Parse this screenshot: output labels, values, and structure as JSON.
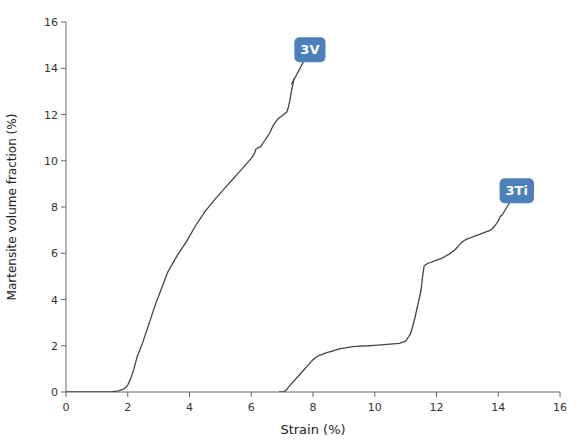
{
  "chart_data": {
    "type": "line",
    "xlabel": "Strain (%)",
    "ylabel": "Martensite volume fraction (%)",
    "xlim": [
      0,
      16
    ],
    "ylim": [
      0,
      16
    ],
    "xticks": [
      0,
      2,
      4,
      6,
      8,
      10,
      12,
      14,
      16
    ],
    "yticks": [
      0,
      2,
      4,
      6,
      8,
      10,
      12,
      14,
      16
    ],
    "grid": false,
    "series": [
      {
        "color": "#444444",
        "x": [
          0.0,
          0.5,
          1.0,
          1.3,
          1.5,
          1.7,
          1.9,
          2.0,
          2.1,
          2.2,
          2.3,
          2.5,
          2.7,
          2.9,
          3.1,
          3.3,
          3.6,
          3.9,
          4.2,
          4.5,
          4.8,
          5.0,
          5.2,
          5.4,
          5.6,
          5.8,
          6.0,
          6.1,
          6.15,
          6.2,
          6.3,
          6.4,
          6.5,
          6.6,
          6.7,
          6.8,
          6.9,
          7.0,
          7.05,
          7.1,
          7.15,
          7.2,
          7.25,
          7.3,
          7.35,
          7.38
        ],
        "values": [
          0.0,
          0.0,
          0.0,
          0.0,
          0.02,
          0.05,
          0.15,
          0.3,
          0.6,
          1.0,
          1.5,
          2.2,
          3.0,
          3.8,
          4.5,
          5.2,
          5.9,
          6.5,
          7.2,
          7.8,
          8.3,
          8.6,
          8.9,
          9.2,
          9.5,
          9.8,
          10.1,
          10.3,
          10.5,
          10.55,
          10.6,
          10.8,
          11.0,
          11.2,
          11.5,
          11.7,
          11.85,
          11.95,
          12.0,
          12.05,
          12.1,
          12.3,
          12.6,
          13.0,
          13.3,
          13.55
        ]
      },
      {
        "color": "#444444",
        "x": [
          6.9,
          7.0,
          7.05,
          7.1,
          7.15,
          7.2,
          7.3,
          7.4,
          7.5,
          7.6,
          7.7,
          7.8,
          7.9,
          8.0,
          8.1,
          8.2,
          8.3,
          8.4,
          8.5,
          8.6,
          8.65,
          8.7,
          8.75,
          8.8,
          8.85,
          8.9,
          9.0,
          9.1,
          9.2,
          9.3,
          9.5,
          9.8,
          10.0,
          10.3,
          10.8,
          11.0,
          11.1,
          11.15,
          11.2,
          11.3,
          11.4,
          11.5,
          11.55,
          11.6,
          11.65,
          11.7,
          11.8,
          11.9,
          12.0,
          12.1,
          12.2,
          12.3,
          12.4,
          12.5,
          12.6,
          12.7,
          12.8,
          12.9,
          13.0,
          13.1,
          13.2,
          13.3,
          13.4,
          13.5,
          13.6,
          13.7,
          13.8,
          13.9,
          14.0,
          14.05,
          14.1
        ],
        "values": [
          0.0,
          0.0,
          0.02,
          0.05,
          0.1,
          0.2,
          0.35,
          0.5,
          0.65,
          0.8,
          0.95,
          1.1,
          1.25,
          1.4,
          1.5,
          1.58,
          1.63,
          1.68,
          1.72,
          1.76,
          1.78,
          1.8,
          1.82,
          1.84,
          1.86,
          1.88,
          1.9,
          1.92,
          1.94,
          1.96,
          1.98,
          2.0,
          2.02,
          2.05,
          2.1,
          2.2,
          2.4,
          2.5,
          2.7,
          3.2,
          3.8,
          4.4,
          5.0,
          5.45,
          5.5,
          5.55,
          5.6,
          5.65,
          5.7,
          5.75,
          5.8,
          5.88,
          5.95,
          6.05,
          6.15,
          6.3,
          6.45,
          6.55,
          6.62,
          6.67,
          6.72,
          6.77,
          6.82,
          6.87,
          6.92,
          6.97,
          7.05,
          7.2,
          7.4,
          7.55,
          7.65
        ]
      }
    ],
    "annotations": [
      {
        "text": "3V",
        "x": 7.3,
        "y": 13.3,
        "text_x": 7.9,
        "text_y": 14.8,
        "color": "#4d7fba"
      },
      {
        "text": "3Ti",
        "x": 14.1,
        "y": 7.6,
        "text_x": 14.6,
        "text_y": 8.7,
        "color": "#4d7fba"
      }
    ]
  }
}
